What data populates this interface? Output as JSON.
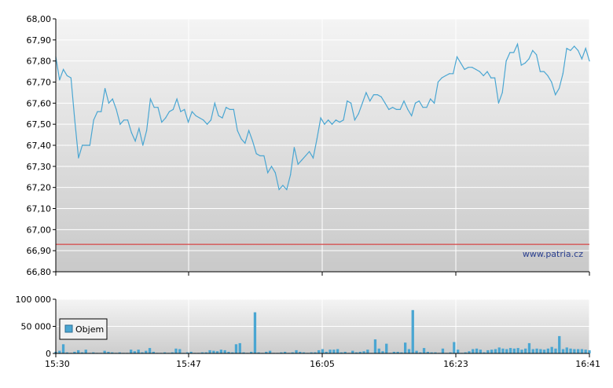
{
  "chart_data": [
    {
      "type": "line",
      "x_ticks": [
        "15:30",
        "15:47",
        "16:05",
        "16:23",
        "16:41"
      ],
      "y_ticks": [
        "66,80",
        "66,90",
        "67,00",
        "67,10",
        "67,20",
        "67,30",
        "67,40",
        "67,50",
        "67,60",
        "67,70",
        "67,80",
        "67,90",
        "68,00"
      ],
      "ylim": [
        66.8,
        68.0
      ],
      "grid": true,
      "reference_line": 66.93,
      "watermark": "www.patria.cz",
      "colors": {
        "line": "#4aa6d2",
        "reference": "#d64545"
      },
      "series": [
        {
          "values": [
            67.82,
            67.71,
            67.76,
            67.73,
            67.72,
            67.52,
            67.34,
            67.4,
            67.4,
            67.4,
            67.52,
            67.56,
            67.56,
            67.67,
            67.6,
            67.62,
            67.57,
            67.5,
            67.52,
            67.52,
            67.46,
            67.42,
            67.48,
            67.4,
            67.47,
            67.62,
            67.58,
            67.58,
            67.51,
            67.53,
            67.56,
            67.57,
            67.62,
            67.56,
            67.57,
            67.51,
            67.56,
            67.54,
            67.53,
            67.52,
            67.5,
            67.52,
            67.6,
            67.54,
            67.53,
            67.58,
            67.57,
            67.57,
            67.47,
            67.43,
            67.41,
            67.47,
            67.42,
            67.36,
            67.35,
            67.35,
            67.27,
            67.3,
            67.27,
            67.19,
            67.21,
            67.19,
            67.26,
            67.39,
            67.31,
            67.33,
            67.35,
            67.37,
            67.34,
            67.43,
            67.53,
            67.5,
            67.52,
            67.5,
            67.52,
            67.51,
            67.52,
            67.61,
            67.6,
            67.52,
            67.55,
            67.6,
            67.65,
            67.61,
            67.64,
            67.64,
            67.63,
            67.6,
            67.57,
            67.58,
            67.57,
            67.57,
            67.61,
            67.57,
            67.54,
            67.6,
            67.61,
            67.58,
            67.58,
            67.62,
            67.6,
            67.7,
            67.72,
            67.73,
            67.74,
            67.74,
            67.82,
            67.79,
            67.76,
            67.77,
            67.77,
            67.76,
            67.75,
            67.73,
            67.75,
            67.72,
            67.72,
            67.6,
            67.65,
            67.8,
            67.84,
            67.84,
            67.88,
            67.78,
            67.79,
            67.81,
            67.85,
            67.83,
            67.75,
            67.75,
            67.73,
            67.7,
            67.64,
            67.67,
            67.74,
            67.86,
            67.85,
            67.87,
            67.85,
            67.81,
            67.86,
            67.8
          ]
        }
      ]
    },
    {
      "type": "bar",
      "x_ticks": [
        "15:30",
        "15:47",
        "16:05",
        "16:23",
        "16:41"
      ],
      "y_ticks": [
        "0",
        "50 000",
        "100 000"
      ],
      "ylim": [
        0,
        100000
      ],
      "grid": true,
      "legend": "top-left",
      "colors": {
        "bar": "#4aa6d2"
      },
      "series": [
        {
          "name": "Objem",
          "values": [
            3000,
            5000,
            17000,
            2000,
            1000,
            3000,
            6000,
            2000,
            7000,
            1000,
            2000,
            1000,
            1000,
            5000,
            3000,
            2000,
            1000,
            2000,
            1000,
            1000,
            7000,
            4000,
            7000,
            2000,
            5000,
            10000,
            3000,
            1000,
            1000,
            2000,
            1000,
            2000,
            9000,
            8000,
            1000,
            2000,
            3000,
            1000,
            1000,
            2000,
            2000,
            6000,
            5000,
            4000,
            7000,
            6000,
            3000,
            2000,
            17000,
            19000,
            2000,
            1000,
            3000,
            76000,
            2000,
            1000,
            3000,
            5000,
            1000,
            1000,
            2000,
            3000,
            1000,
            2000,
            6000,
            3000,
            2000,
            1000,
            2000,
            2000,
            6000,
            8000,
            3000,
            7000,
            7000,
            8000,
            2000,
            3000,
            1000,
            5000,
            2000,
            3000,
            4000,
            7000,
            1000,
            26000,
            9000,
            4000,
            18000,
            1000,
            3000,
            3000,
            2000,
            20000,
            8000,
            80000,
            5000,
            2000,
            10000,
            3000,
            2000,
            2000,
            1000,
            9000,
            1000,
            2000,
            21000,
            7000,
            1000,
            2000,
            4000,
            8000,
            9000,
            7000,
            2000,
            6000,
            7000,
            8000,
            11000,
            9000,
            8000,
            10000,
            9000,
            10000,
            7000,
            9000,
            19000,
            8000,
            9000,
            8000,
            7000,
            9000,
            12000,
            9000,
            32000,
            8000,
            11000,
            9000,
            8000,
            8000,
            8000,
            7000,
            6000
          ]
        }
      ]
    }
  ]
}
